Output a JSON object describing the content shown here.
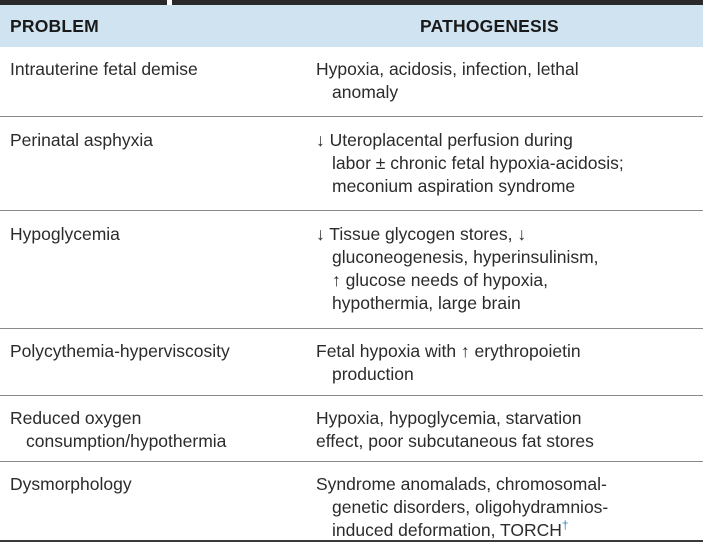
{
  "table": {
    "headers": {
      "problem": "PROBLEM",
      "pathogenesis": "PATHOGENESIS"
    },
    "rows": [
      {
        "problem": [
          "Intrauterine fetal demise"
        ],
        "pathogenesis": [
          "Hypoxia, acidosis, infection, lethal",
          "anomaly"
        ]
      },
      {
        "problem": [
          "Perinatal asphyxia"
        ],
        "pathogenesis": [
          "↓ Uteroplacental perfusion during",
          "labor ± chronic fetal hypoxia-acidosis;",
          "meconium aspiration syndrome"
        ]
      },
      {
        "problem": [
          "Hypoglycemia"
        ],
        "pathogenesis": [
          "↓ Tissue glycogen stores, ↓",
          "gluconeogenesis, hyperinsulinism,",
          "↑ glucose needs of hypoxia,",
          "hypothermia, large brain"
        ]
      },
      {
        "problem": [
          "Polycythemia-hyperviscosity"
        ],
        "pathogenesis": [
          "Fetal hypoxia with ↑ erythropoietin",
          "production"
        ]
      },
      {
        "problem": [
          "Reduced oxygen",
          "consumption/hypothermia"
        ],
        "pathogenesis": [
          "Hypoxia, hypoglycemia, starvation",
          "effect, poor subcutaneous fat stores"
        ]
      },
      {
        "problem": [
          "Dysmorphology"
        ],
        "pathogenesis": [
          "Syndrome anomalads, chromosomal-",
          "genetic disorders, oligohydramnios-",
          "induced deformation, TORCH"
        ],
        "footnote_mark": "†"
      }
    ]
  }
}
